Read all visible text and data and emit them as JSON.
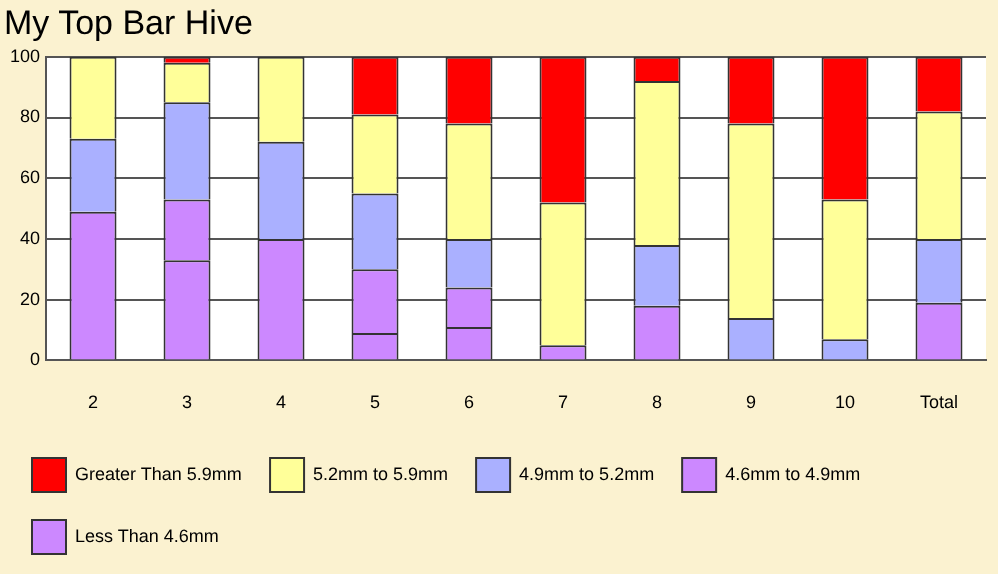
{
  "chart_data": {
    "type": "bar",
    "title": "My Top Bar Hive",
    "stacked": true,
    "categories": [
      "2",
      "3",
      "4",
      "5",
      "6",
      "7",
      "8",
      "9",
      "10",
      "Total"
    ],
    "series": [
      {
        "name": "Less Than 4.6mm",
        "color": "#cc88ff",
        "values": [
          49,
          33,
          40,
          9,
          11,
          5,
          18,
          0,
          0,
          19
        ]
      },
      {
        "name": "4.6mm to 4.9mm",
        "color": "#cc88ff",
        "values": [
          0,
          20,
          0,
          21,
          13,
          0,
          0,
          0,
          0,
          0
        ]
      },
      {
        "name": "4.9mm to 5.2mm",
        "color": "#aab0ff",
        "values": [
          24,
          32,
          32,
          25,
          16,
          0,
          20,
          14,
          7,
          21
        ]
      },
      {
        "name": "5.2mm to 5.9mm",
        "color": "#ffff99",
        "values": [
          27,
          13,
          28,
          26,
          38,
          47,
          54,
          64,
          46,
          42
        ]
      },
      {
        "name": "Greater Than 5.9mm",
        "color": "#ff0000",
        "values": [
          0,
          2,
          0,
          19,
          22,
          48,
          8,
          22,
          47,
          18
        ]
      }
    ],
    "ylim": [
      0,
      100
    ],
    "yticks": [
      0,
      20,
      40,
      60,
      80,
      100
    ],
    "grid": "y",
    "legend": "bottom"
  }
}
